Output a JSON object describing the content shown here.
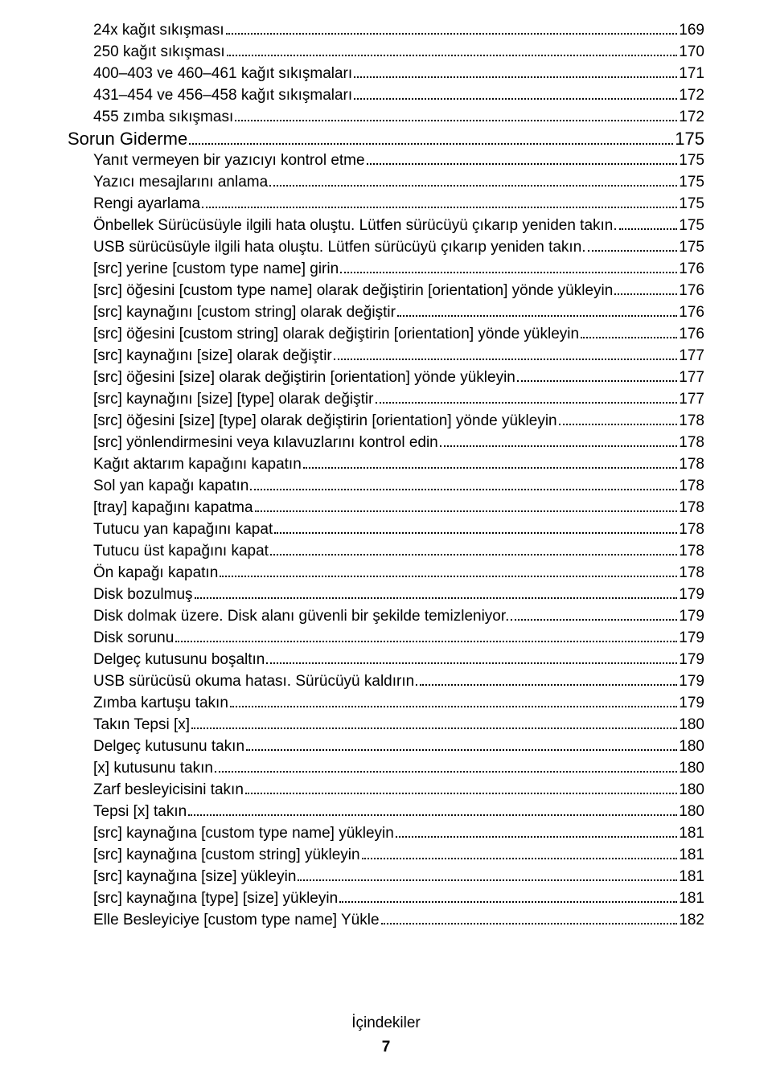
{
  "footer_label": "İçindekiler",
  "page_number": "7",
  "entries": [
    {
      "label": "24x kağıt sıkışması",
      "page": "169",
      "indent": 1,
      "level": "item"
    },
    {
      "label": "250 kağıt sıkışması",
      "page": "170",
      "indent": 1,
      "level": "item"
    },
    {
      "label": "400–403 ve 460–461 kağıt sıkışmaları",
      "page": "171",
      "indent": 1,
      "level": "item"
    },
    {
      "label": "431–454 ve 456–458 kağıt sıkışmaları",
      "page": "172",
      "indent": 1,
      "level": "item"
    },
    {
      "label": "455 zımba sıkışması",
      "page": "172",
      "indent": 1,
      "level": "item"
    },
    {
      "label": "Sorun Giderme",
      "page": "175",
      "indent": 0,
      "level": "section"
    },
    {
      "label": "Yanıt vermeyen bir yazıcıyı kontrol etme",
      "page": "175",
      "indent": 1,
      "level": "item"
    },
    {
      "label": "Yazıcı mesajlarını anlama",
      "page": "175",
      "indent": 1,
      "level": "item"
    },
    {
      "label": "Rengi ayarlama",
      "page": "175",
      "indent": 1,
      "level": "item"
    },
    {
      "label": "Önbellek Sürücüsüyle ilgili hata oluştu. Lütfen sürücüyü çıkarıp yeniden takın.",
      "page": "175",
      "indent": 1,
      "level": "item"
    },
    {
      "label": "USB sürücüsüyle ilgili hata oluştu. Lütfen sürücüyü çıkarıp yeniden takın. ",
      "page": "175",
      "indent": 1,
      "level": "item"
    },
    {
      "label": "[src] yerine [custom type name] girin",
      "page": "176",
      "indent": 1,
      "level": "item"
    },
    {
      "label": "[src] öğesini [custom type name] olarak değiştirin [orientation] yönde yükleyin",
      "page": "176",
      "indent": 1,
      "level": "item"
    },
    {
      "label": "[src] kaynağını [custom string] olarak değiştir",
      "page": "176",
      "indent": 1,
      "level": "item"
    },
    {
      "label": "[src] öğesini [custom string] olarak değiştirin [orientation] yönde yükleyin",
      "page": "176",
      "indent": 1,
      "level": "item"
    },
    {
      "label": "[src] kaynağını [size] olarak değiştir",
      "page": "177",
      "indent": 1,
      "level": "item"
    },
    {
      "label": "[src] öğesini [size] olarak değiştirin [orientation] yönde yükleyin",
      "page": "177",
      "indent": 1,
      "level": "item"
    },
    {
      "label": "[src] kaynağını [size] [type] olarak değiştir",
      "page": "177",
      "indent": 1,
      "level": "item"
    },
    {
      "label": "[src] öğesini [size] [type] olarak değiştirin [orientation] yönde yükleyin",
      "page": "178",
      "indent": 1,
      "level": "item"
    },
    {
      "label": "[src] yönlendirmesini veya kılavuzlarını kontrol edin",
      "page": "178",
      "indent": 1,
      "level": "item"
    },
    {
      "label": "Kağıt aktarım kapağını kapatın",
      "page": "178",
      "indent": 1,
      "level": "item"
    },
    {
      "label": "Sol yan kapağı kapatın",
      "page": "178",
      "indent": 1,
      "level": "item"
    },
    {
      "label": "[tray] kapağını kapatma",
      "page": "178",
      "indent": 1,
      "level": "item"
    },
    {
      "label": "Tutucu yan kapağını kapat",
      "page": "178",
      "indent": 1,
      "level": "item"
    },
    {
      "label": "Tutucu üst kapağını kapat",
      "page": "178",
      "indent": 1,
      "level": "item"
    },
    {
      "label": "Ön kapağı kapatın",
      "page": "178",
      "indent": 1,
      "level": "item"
    },
    {
      "label": "Disk bozulmuş",
      "page": "179",
      "indent": 1,
      "level": "item"
    },
    {
      "label": "Disk dolmak üzere. Disk alanı güvenli bir şekilde temizleniyor.",
      "page": "179",
      "indent": 1,
      "level": "item"
    },
    {
      "label": "Disk sorunu",
      "page": "179",
      "indent": 1,
      "level": "item"
    },
    {
      "label": "Delgeç kutusunu boşaltın",
      "page": "179",
      "indent": 1,
      "level": "item"
    },
    {
      "label": "USB sürücüsü okuma hatası. Sürücüyü kaldırın.",
      "page": "179",
      "indent": 1,
      "level": "item"
    },
    {
      "label": "Zımba kartuşu takın",
      "page": "179",
      "indent": 1,
      "level": "item"
    },
    {
      "label": "Takın Tepsi [x]",
      "page": "180",
      "indent": 1,
      "level": "item"
    },
    {
      "label": "Delgeç kutusunu takın",
      "page": "180",
      "indent": 1,
      "level": "item"
    },
    {
      "label": "[x] kutusunu takın",
      "page": "180",
      "indent": 1,
      "level": "item"
    },
    {
      "label": "Zarf besleyicisini takın",
      "page": "180",
      "indent": 1,
      "level": "item"
    },
    {
      "label": "Tepsi [x] takın",
      "page": "180",
      "indent": 1,
      "level": "item"
    },
    {
      "label": "[src] kaynağına [custom type name] yükleyin",
      "page": "181",
      "indent": 1,
      "level": "item"
    },
    {
      "label": "[src] kaynağına [custom string] yükleyin",
      "page": "181",
      "indent": 1,
      "level": "item"
    },
    {
      "label": "[src] kaynağına [size] yükleyin",
      "page": "181",
      "indent": 1,
      "level": "item"
    },
    {
      "label": "[src] kaynağına [type] [size] yükleyin",
      "page": "181",
      "indent": 1,
      "level": "item"
    },
    {
      "label": "Elle Besleyiciye [custom type name] Yükle",
      "page": "182",
      "indent": 1,
      "level": "item"
    }
  ]
}
